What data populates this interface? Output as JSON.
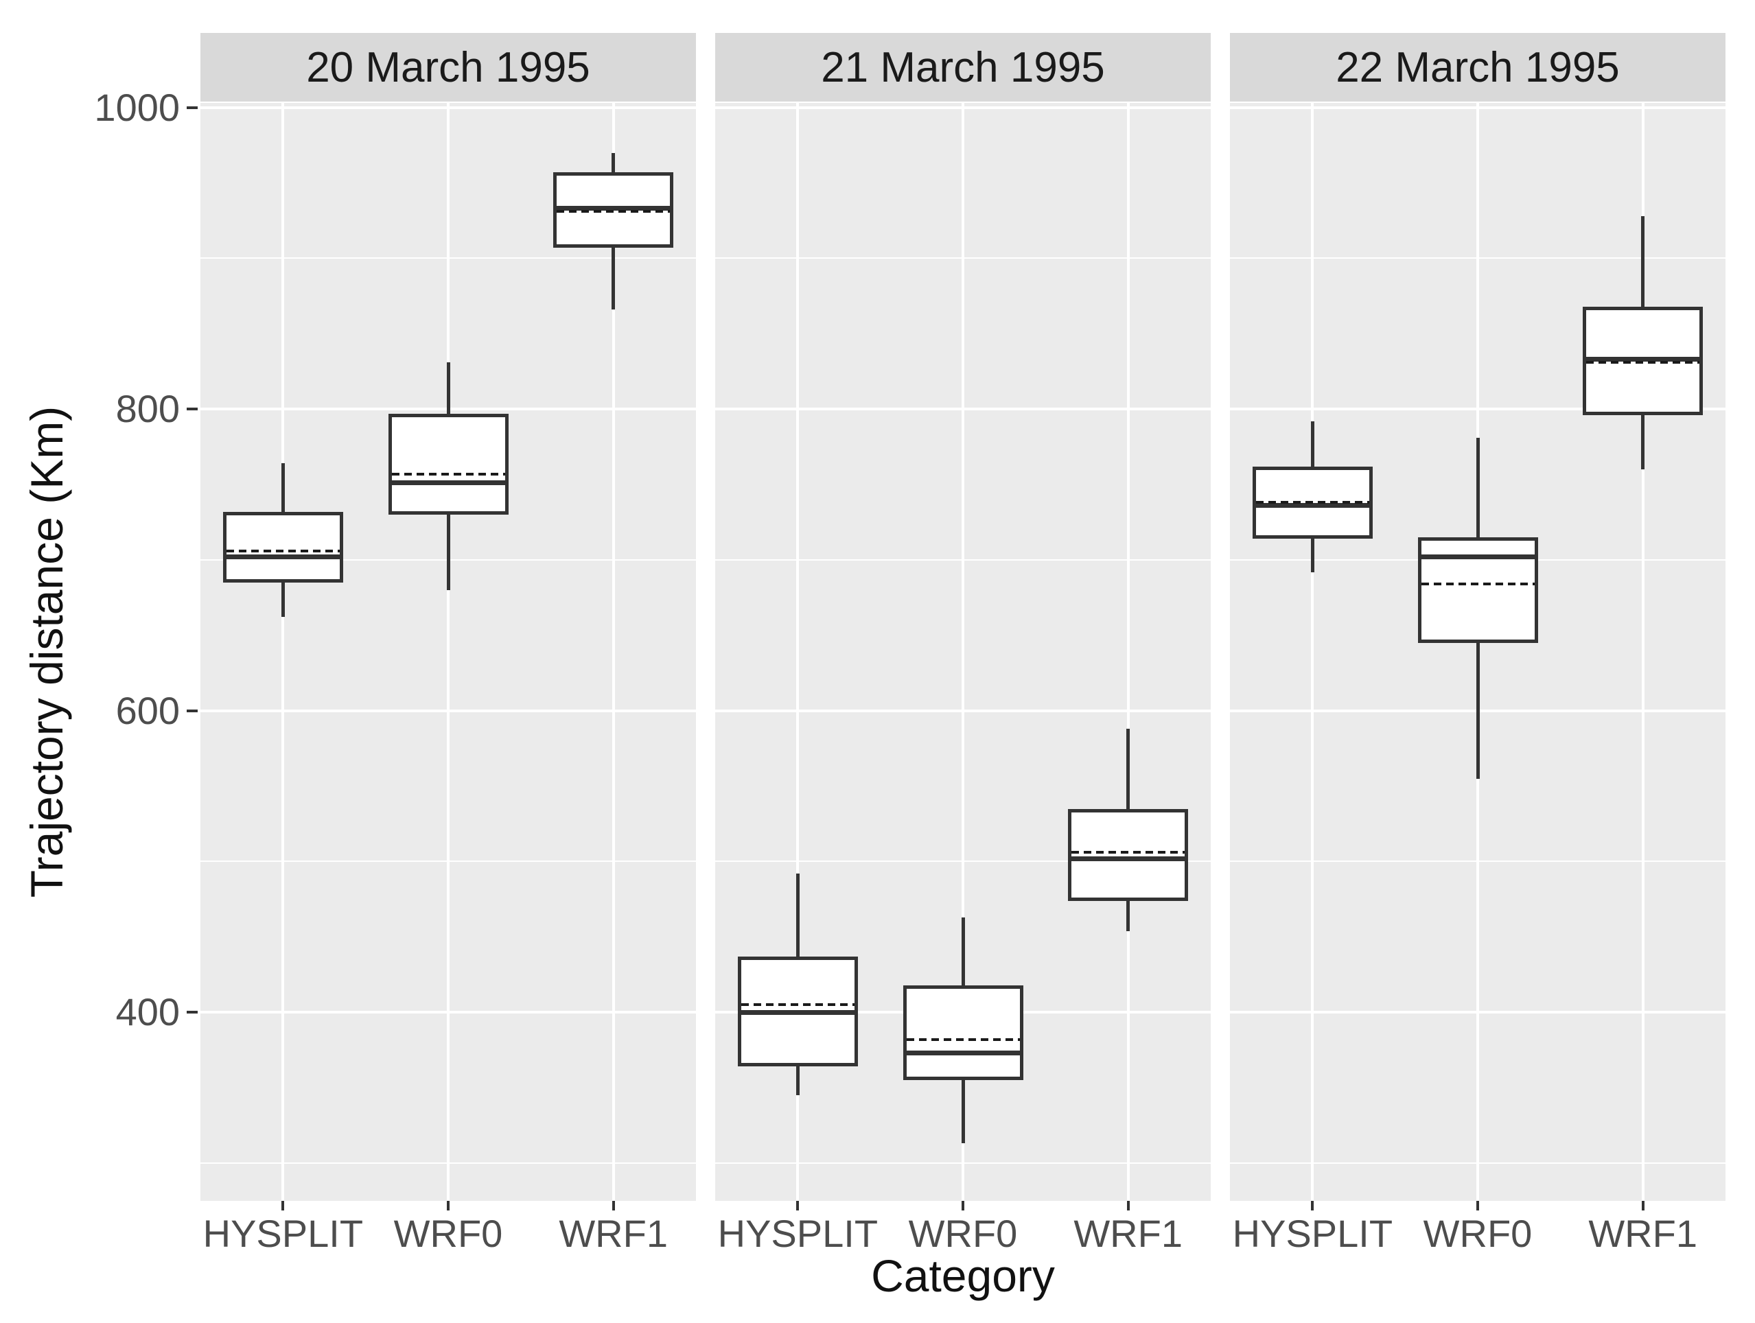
{
  "chart_data": {
    "type": "boxplot",
    "faceted": true,
    "facet_titles": [
      "20 March 1995",
      "21 March 1995",
      "22 March 1995"
    ],
    "categories": [
      "HYSPLIT",
      "WRF0",
      "WRF1"
    ],
    "xlabel": "Category",
    "ylabel": "Trajectory distance (Km)",
    "y_ticks": [
      1000,
      800,
      600,
      400
    ],
    "y_tick_labels": [
      "1000",
      "800",
      "600",
      "400"
    ],
    "y_minor_gridlines": [
      900,
      700,
      500,
      300
    ],
    "ylim": [
      275,
      1003
    ],
    "grid": true,
    "legend": "none",
    "facets": [
      {
        "title": "20 March 1995",
        "boxes": [
          {
            "category": "HYSPLIT",
            "min": 662,
            "q1": 685,
            "median": 702,
            "mean": 706,
            "q3": 732,
            "max": 764
          },
          {
            "category": "WRF0",
            "min": 680,
            "q1": 730,
            "median": 751,
            "mean": 757,
            "q3": 797,
            "max": 831
          },
          {
            "category": "WRF1",
            "min": 866,
            "q1": 907,
            "median": 933,
            "mean": 931,
            "q3": 957,
            "max": 970
          }
        ]
      },
      {
        "title": "21 March 1995",
        "boxes": [
          {
            "category": "HYSPLIT",
            "min": 345,
            "q1": 364,
            "median": 400,
            "mean": 405,
            "q3": 437,
            "max": 492
          },
          {
            "category": "WRF0",
            "min": 313,
            "q1": 355,
            "median": 373,
            "mean": 382,
            "q3": 418,
            "max": 463
          },
          {
            "category": "WRF1",
            "min": 454,
            "q1": 474,
            "median": 502,
            "mean": 506,
            "q3": 535,
            "max": 588
          }
        ]
      },
      {
        "title": "22 March 1995",
        "boxes": [
          {
            "category": "HYSPLIT",
            "min": 692,
            "q1": 714,
            "median": 736,
            "mean": 738,
            "q3": 762,
            "max": 792
          },
          {
            "category": "WRF0",
            "min": 555,
            "q1": 645,
            "median": 702,
            "mean": 684,
            "q3": 715,
            "max": 781
          },
          {
            "category": "WRF1",
            "min": 760,
            "q1": 796,
            "median": 833,
            "mean": 831,
            "q3": 868,
            "max": 928
          }
        ]
      }
    ]
  },
  "style": {
    "panel_bg": "#EBEBEB",
    "strip_bg": "#D9D9D9",
    "grid_color": "#FFFFFF",
    "box_border": "#333333",
    "box_fill": "#FFFFFF",
    "mean_dash_color": "#1a1a1a",
    "tick_color": "#333333",
    "tick_label_color": "#4D4D4D",
    "title_color": "#111111"
  }
}
